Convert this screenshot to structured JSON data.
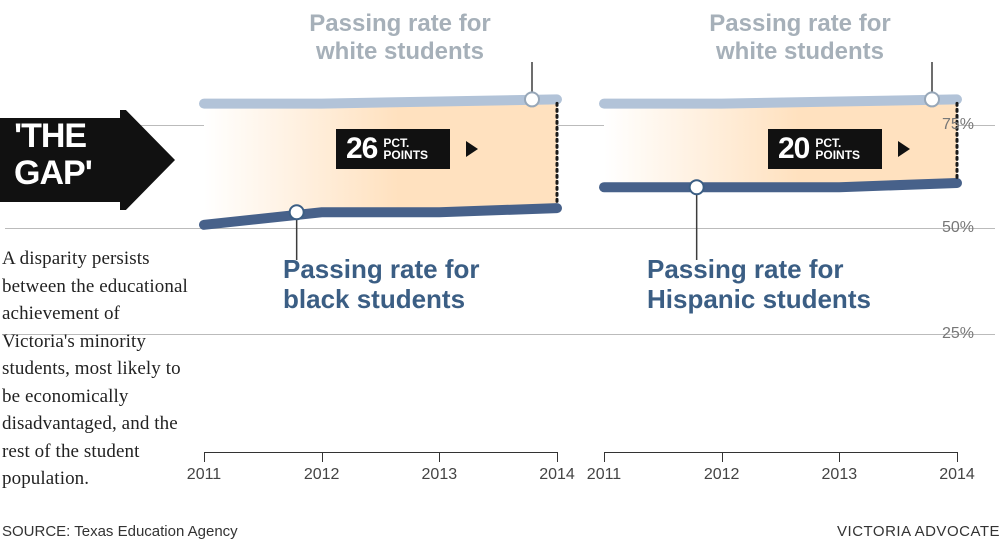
{
  "title": "'THE GAP'",
  "body": "A disparity persists between the educational achievement of Victoria's minority students, most likely to be economically disadvantaged, and the rest of the student population.",
  "source_label": "SOURCE: Texas Education Agency",
  "brand": "VICTORIA ADVOCATE",
  "y_axis": {
    "ticks_pct": [
      25,
      50,
      75
    ],
    "labels": [
      "25%",
      "50%",
      "75%"
    ]
  },
  "x_axis": {
    "years": [
      2011,
      2012,
      2013,
      2014
    ]
  },
  "chart_left": {
    "type": "line",
    "top_label": "Passing rate for white students",
    "bottom_label": "Passing rate for black students",
    "white_pct": [
      80,
      80,
      80.5,
      81
    ],
    "minority_pct": [
      51,
      54,
      54,
      55
    ],
    "gap_value": "26",
    "gap_unit_l1": "PCT.",
    "gap_unit_l2": "POINTS",
    "top_marker_year": 2014,
    "bottom_marker_year": 2012,
    "colors": {
      "fill_gradient_from": "#ffffff",
      "fill_gradient_to": "#ffe1bf",
      "white_line": "#b2c3d8",
      "minority_line": "#47618a",
      "line_width": 10,
      "marker_radius": 7,
      "marker_fill": "#ffffff",
      "marker_stroke_white": "#97a7b8",
      "marker_stroke_minority": "#3b5e84",
      "callout_line": "#3c3c3c",
      "dotted": "#1a1a1a"
    }
  },
  "chart_right": {
    "type": "line",
    "top_label": "Passing rate for white students",
    "bottom_label": "Passing rate for Hispanic students",
    "white_pct": [
      80,
      80,
      80.5,
      81
    ],
    "minority_pct": [
      60,
      60,
      60,
      61
    ],
    "gap_value": "20",
    "gap_unit_l1": "PCT.",
    "gap_unit_l2": "POINTS",
    "top_marker_year": 2014,
    "bottom_marker_year": 2012,
    "colors": {
      "fill_gradient_from": "#ffffff",
      "fill_gradient_to": "#ffe1bf",
      "white_line": "#b2c3d8",
      "minority_line": "#47618a",
      "line_width": 10,
      "marker_radius": 7,
      "marker_fill": "#ffffff",
      "marker_stroke_white": "#97a7b8",
      "marker_stroke_minority": "#3b5e84",
      "callout_line": "#3c3c3c",
      "dotted": "#1a1a1a"
    }
  }
}
